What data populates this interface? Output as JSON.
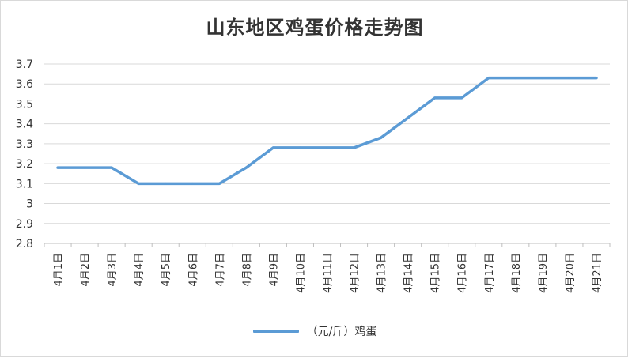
{
  "chart_data": {
    "type": "line",
    "title": "山东地区鸡蛋价格走势图",
    "xlabel": "",
    "ylabel": "",
    "categories": [
      "4月1日",
      "4月2日",
      "4月3日",
      "4月4日",
      "4月5日",
      "4月6日",
      "4月7日",
      "4月8日",
      "4月9日",
      "4月10日",
      "4月11日",
      "4月12日",
      "4月13日",
      "4月14日",
      "4月15日",
      "4月16日",
      "4月17日",
      "4月18日",
      "4月19日",
      "4月20日",
      "4月21日"
    ],
    "series": [
      {
        "name": "（元/斤）鸡蛋",
        "color": "#5b9bd5",
        "values": [
          3.18,
          3.18,
          3.18,
          3.1,
          3.1,
          3.1,
          3.1,
          3.18,
          3.28,
          3.28,
          3.28,
          3.28,
          3.33,
          3.43,
          3.53,
          3.53,
          3.63,
          3.63,
          3.63,
          3.63,
          3.63
        ]
      }
    ],
    "ylim": [
      2.8,
      3.7
    ],
    "yticks": [
      "2.8",
      "2.9",
      "3",
      "3.1",
      "3.2",
      "3.3",
      "3.4",
      "3.5",
      "3.6",
      "3.7"
    ],
    "grid": true,
    "legend": "bottom"
  }
}
